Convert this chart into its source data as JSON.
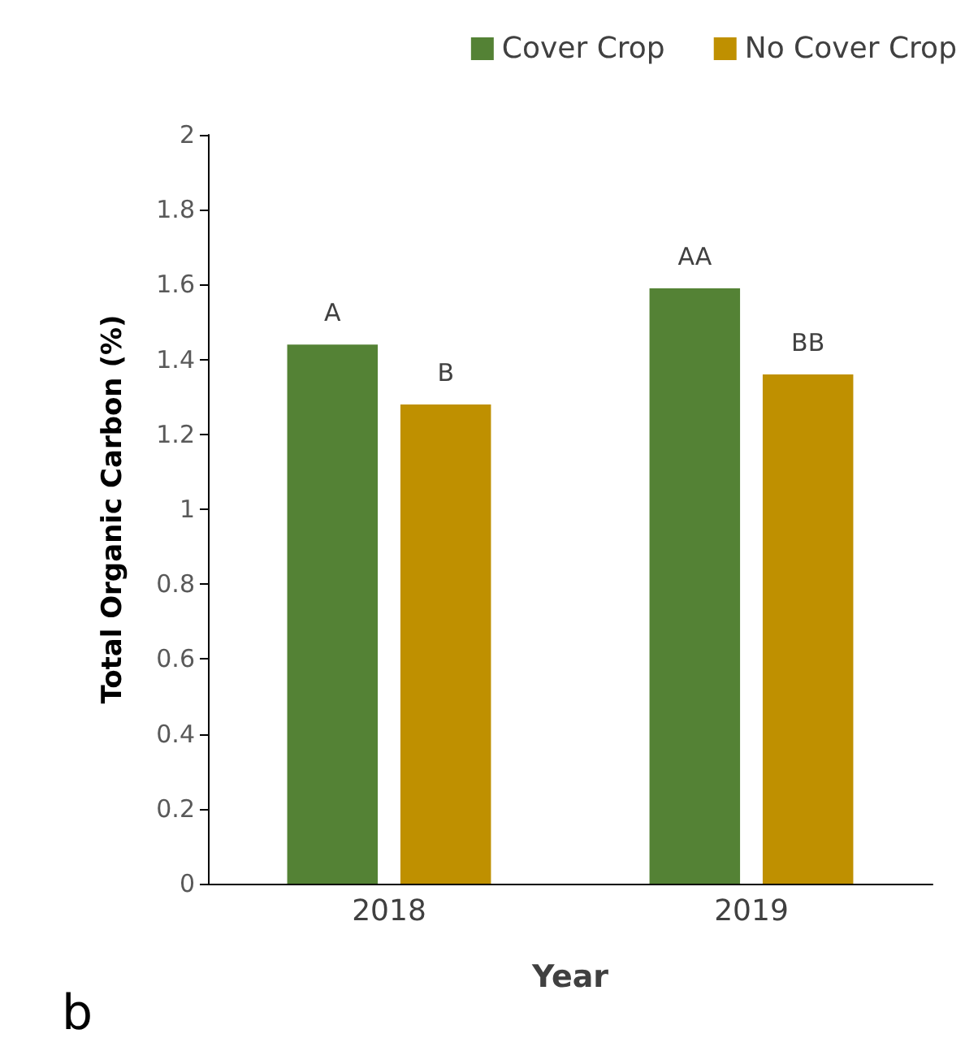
{
  "chart_data": {
    "type": "bar",
    "xlabel": "Year",
    "ylabel": "Total Organic Carbon (%)",
    "categories": [
      "2018",
      "2019"
    ],
    "series": [
      {
        "name": "Cover Crop",
        "color": "#548235",
        "values": [
          1.44,
          1.59
        ],
        "value_labels": [
          "A",
          "AA"
        ]
      },
      {
        "name": "No Cover Crop",
        "color": "#bf9000",
        "values": [
          1.28,
          1.36
        ],
        "value_labels": [
          "B",
          "BB"
        ]
      }
    ],
    "ylim": [
      0,
      2
    ],
    "yticks": [
      0,
      0.2,
      0.4,
      0.6,
      0.8,
      1,
      1.2,
      1.4,
      1.6,
      1.8,
      2
    ],
    "grid": false,
    "legend": "top right",
    "annotations": [
      "b"
    ]
  }
}
